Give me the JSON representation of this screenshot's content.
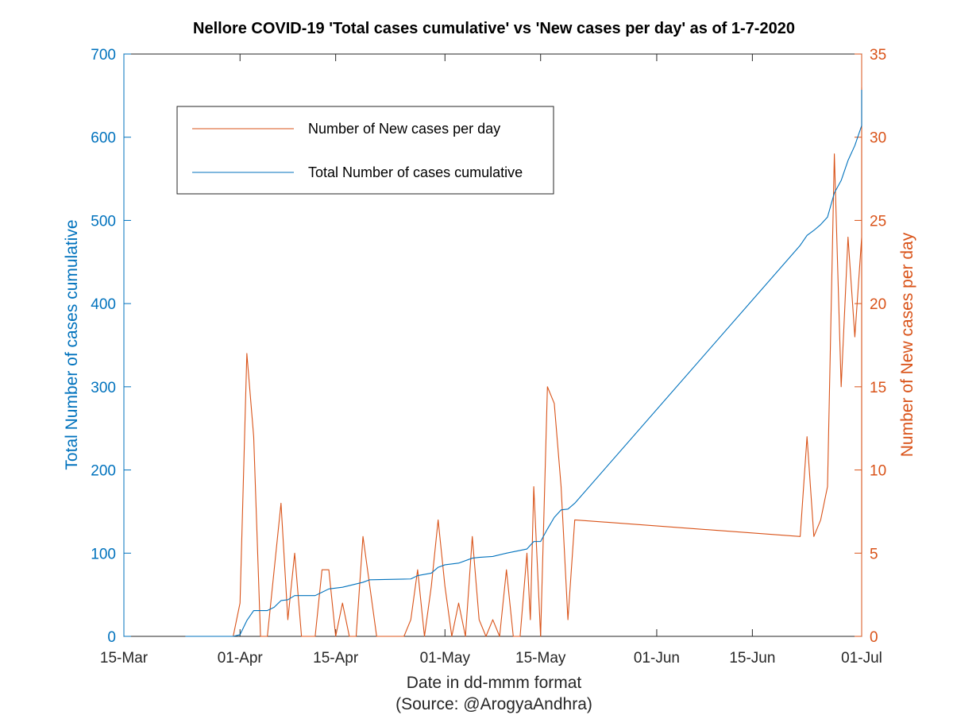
{
  "chart_data": {
    "type": "line",
    "title": "Nellore COVID-19 'Total cases cumulative' vs 'New cases per day' as of 1-7-2020",
    "xlabel": "Date in dd-mmm format",
    "xlabel2": "(Source: @ArogyaAndhra)",
    "ylabel_left": "Total Number of cases cumulative",
    "ylabel_right": "Number of New cases per day",
    "xlim": [
      "2020-03-15",
      "2020-07-01"
    ],
    "ylim_left": [
      0,
      700
    ],
    "ylim_right": [
      0,
      35
    ],
    "grid": false,
    "legend_position": "top-left",
    "x_ticks": [
      {
        "date": "2020-03-15",
        "label": "15-Mar"
      },
      {
        "date": "2020-04-01",
        "label": "01-Apr"
      },
      {
        "date": "2020-04-15",
        "label": "15-Apr"
      },
      {
        "date": "2020-05-01",
        "label": "01-May"
      },
      {
        "date": "2020-05-15",
        "label": "15-May"
      },
      {
        "date": "2020-06-01",
        "label": "01-Jun"
      },
      {
        "date": "2020-06-15",
        "label": "15-Jun"
      },
      {
        "date": "2020-07-01",
        "label": "01-Jul"
      }
    ],
    "y_ticks_left": [
      0,
      100,
      200,
      300,
      400,
      500,
      600,
      700
    ],
    "y_ticks_right": [
      0,
      5,
      10,
      15,
      20,
      25,
      30,
      35
    ],
    "series": [
      {
        "name": "Number of New cases per day",
        "axis": "right",
        "color": "#D95319",
        "points": [
          [
            "2020-03-24",
            0
          ],
          [
            "2020-03-31",
            0
          ],
          [
            "2020-04-01",
            2
          ],
          [
            "2020-04-02",
            17
          ],
          [
            "2020-04-03",
            12
          ],
          [
            "2020-04-04",
            0
          ],
          [
            "2020-04-05",
            0
          ],
          [
            "2020-04-06",
            4
          ],
          [
            "2020-04-07",
            8
          ],
          [
            "2020-04-08",
            1
          ],
          [
            "2020-04-09",
            5
          ],
          [
            "2020-04-10",
            0
          ],
          [
            "2020-04-12",
            0
          ],
          [
            "2020-04-13",
            4
          ],
          [
            "2020-04-14",
            4
          ],
          [
            "2020-04-15",
            0
          ],
          [
            "2020-04-16",
            2
          ],
          [
            "2020-04-17",
            0
          ],
          [
            "2020-04-18",
            0
          ],
          [
            "2020-04-19",
            6
          ],
          [
            "2020-04-20",
            3
          ],
          [
            "2020-04-21",
            0
          ],
          [
            "2020-04-25",
            0
          ],
          [
            "2020-04-26",
            1
          ],
          [
            "2020-04-27",
            4
          ],
          [
            "2020-04-28",
            0
          ],
          [
            "2020-04-29",
            3
          ],
          [
            "2020-04-30",
            7
          ],
          [
            "2020-05-01",
            3
          ],
          [
            "2020-05-02",
            0
          ],
          [
            "2020-05-03",
            2
          ],
          [
            "2020-05-04",
            0
          ],
          [
            "2020-05-05",
            6
          ],
          [
            "2020-05-06",
            1
          ],
          [
            "2020-05-07",
            0
          ],
          [
            "2020-05-08",
            1
          ],
          [
            "2020-05-09",
            0
          ],
          [
            "2020-05-10",
            4
          ],
          [
            "2020-05-11",
            0
          ],
          [
            "2020-05-12",
            0
          ],
          [
            "2020-05-13",
            5
          ],
          [
            "2020-05-13T12",
            1
          ],
          [
            "2020-05-14",
            9
          ],
          [
            "2020-05-15",
            0
          ],
          [
            "2020-05-16",
            15
          ],
          [
            "2020-05-17",
            14
          ],
          [
            "2020-05-18",
            9
          ],
          [
            "2020-05-19",
            1
          ],
          [
            "2020-05-20",
            7
          ],
          [
            "2020-06-22",
            6
          ],
          [
            "2020-06-23",
            12
          ],
          [
            "2020-06-24",
            6
          ],
          [
            "2020-06-25",
            7
          ],
          [
            "2020-06-26",
            9
          ],
          [
            "2020-06-27",
            29
          ],
          [
            "2020-06-28",
            15
          ],
          [
            "2020-06-29",
            24
          ],
          [
            "2020-06-30",
            18
          ],
          [
            "2020-07-01",
            24
          ],
          [
            "2020-07-02",
            5
          ],
          [
            "2020-07-03",
            5
          ],
          [
            "2020-07-04",
            33
          ]
        ]
      },
      {
        "name": "Total Number of cases cumulative",
        "axis": "left",
        "color": "#0072BD",
        "points": [
          [
            "2020-03-24",
            0
          ],
          [
            "2020-03-31",
            0
          ],
          [
            "2020-04-01",
            2
          ],
          [
            "2020-04-02",
            19
          ],
          [
            "2020-04-03",
            31
          ],
          [
            "2020-04-04",
            31
          ],
          [
            "2020-04-05",
            31
          ],
          [
            "2020-04-06",
            35
          ],
          [
            "2020-04-07",
            43
          ],
          [
            "2020-04-08",
            44
          ],
          [
            "2020-04-09",
            49
          ],
          [
            "2020-04-12",
            49
          ],
          [
            "2020-04-13",
            53
          ],
          [
            "2020-04-14",
            57
          ],
          [
            "2020-04-16",
            59
          ],
          [
            "2020-04-19",
            65
          ],
          [
            "2020-04-20",
            68
          ],
          [
            "2020-04-26",
            69
          ],
          [
            "2020-04-27",
            73
          ],
          [
            "2020-04-29",
            76
          ],
          [
            "2020-04-30",
            83
          ],
          [
            "2020-05-01",
            86
          ],
          [
            "2020-05-03",
            88
          ],
          [
            "2020-05-05",
            94
          ],
          [
            "2020-05-06",
            95
          ],
          [
            "2020-05-08",
            96
          ],
          [
            "2020-05-10",
            100
          ],
          [
            "2020-05-13",
            105
          ],
          [
            "2020-05-14",
            114
          ],
          [
            "2020-05-15",
            114
          ],
          [
            "2020-05-16",
            129
          ],
          [
            "2020-05-17",
            143
          ],
          [
            "2020-05-18",
            152
          ],
          [
            "2020-05-19",
            153
          ],
          [
            "2020-05-20",
            160
          ],
          [
            "2020-06-22",
            470
          ],
          [
            "2020-06-23",
            482
          ],
          [
            "2020-06-24",
            488
          ],
          [
            "2020-06-25",
            495
          ],
          [
            "2020-06-26",
            504
          ],
          [
            "2020-06-27",
            533
          ],
          [
            "2020-06-28",
            548
          ],
          [
            "2020-06-29",
            572
          ],
          [
            "2020-06-30",
            590
          ],
          [
            "2020-07-01",
            614
          ],
          [
            "2020-07-02",
            619
          ],
          [
            "2020-07-03",
            624
          ],
          [
            "2020-07-04",
            657
          ]
        ]
      }
    ]
  }
}
